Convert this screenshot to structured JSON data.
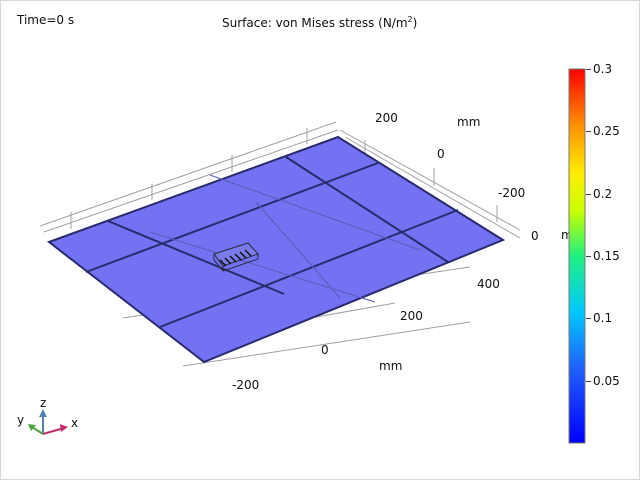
{
  "header": {
    "time_label": "Time=0 s",
    "title_main": "Surface: von Mises stress (N/m",
    "title_sup": "2",
    "title_end": ")"
  },
  "axes": {
    "unit": "mm",
    "y_ticks": [
      "200",
      "0",
      "-200"
    ],
    "x_ticks": [
      "400",
      "200",
      "0",
      "-200"
    ],
    "z_tick": "0",
    "truncated_unit": "m"
  },
  "triad": {
    "z": "z",
    "y": "y",
    "x": "x"
  },
  "colorbar": {
    "min": 0,
    "max": 0.3,
    "ticks": [
      "0.3",
      "0.25",
      "0.2",
      "0.15",
      "0.1",
      "0.05"
    ],
    "tick_values": [
      0.3,
      0.25,
      0.2,
      0.15,
      0.1,
      0.05
    ]
  },
  "colors": {
    "plate_fill": "#7070f0",
    "plate_edge": "#2a2a6e",
    "grid_line": "#9a9a9a"
  }
}
